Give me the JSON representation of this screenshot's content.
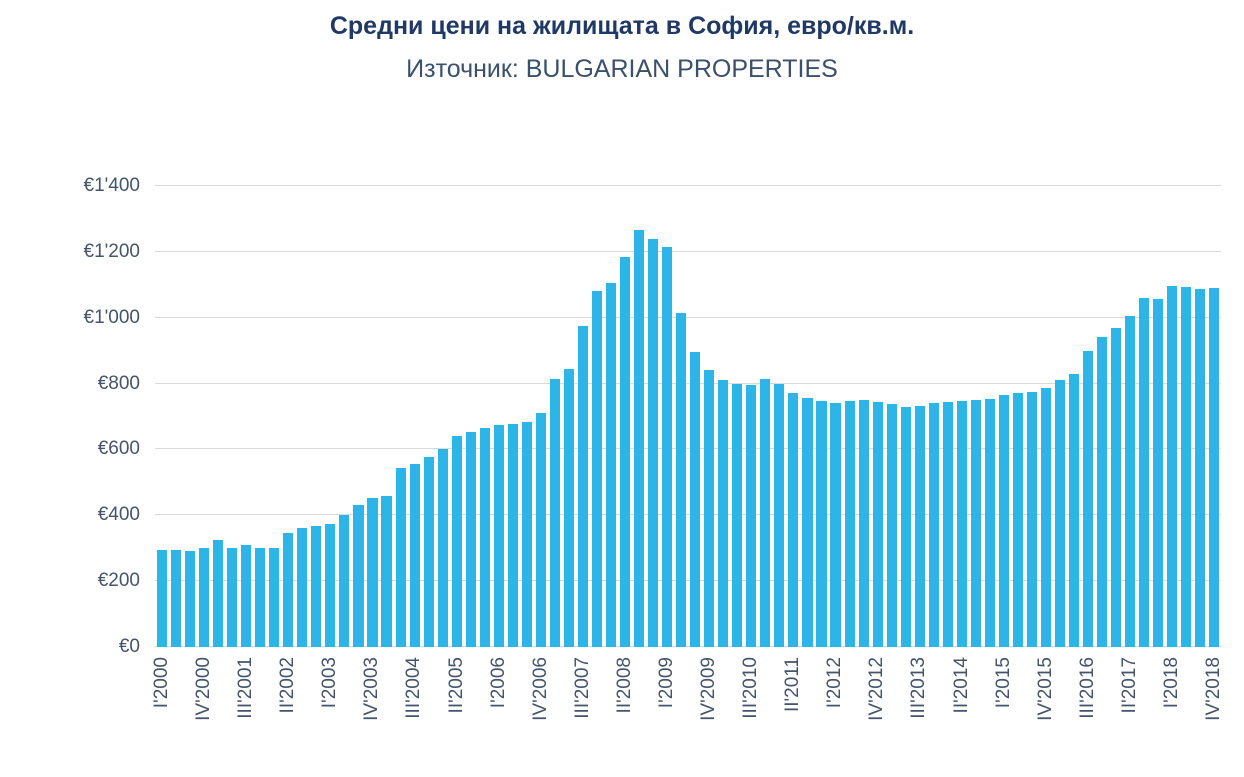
{
  "page": {
    "title": "Средни цени на жилищата в София, евро/кв.м.",
    "subtitle": "Източник: BULGARIAN PROPERTIES"
  },
  "colors": {
    "bar": "#2EB5E8",
    "title": "#1F3864",
    "subtitle": "#3A506B",
    "axis_label": "#44546A",
    "gridline": "#D9D9D9",
    "background": "#FFFFFF"
  },
  "chart_data": {
    "type": "bar",
    "title": "Средни цени на жилищата в София, евро/кв.м.",
    "subtitle": "Източник: BULGARIAN PROPERTIES",
    "unit": "EUR per sq.m.",
    "ylim": [
      0,
      1400
    ],
    "y_tick_step": 200,
    "y_tick_labels": [
      "€0",
      "€200",
      "€400",
      "€600",
      "€800",
      "€1'000",
      "€1'200",
      "€1'400"
    ],
    "x_tick_interval": 3,
    "x_tick_labels": [
      "I'2000",
      "IV'2000",
      "III'2001",
      "II'2002",
      "I'2003",
      "IV'2003",
      "III'2004",
      "II'2005",
      "I'2006",
      "IV'2006",
      "III'2007",
      "II'2008",
      "I'2009",
      "IV'2009",
      "III'2010",
      "II'2011",
      "I'2012",
      "IV'2012",
      "III'2013",
      "II'2014",
      "I'2015",
      "IV'2015",
      "III'2016",
      "II'2017",
      "I'2018",
      "IV'2018"
    ],
    "grid": "horizontal",
    "legend": "none",
    "categories": [
      "I'2000",
      "II'2000",
      "III'2000",
      "IV'2000",
      "I'2001",
      "II'2001",
      "III'2001",
      "IV'2001",
      "I'2002",
      "II'2002",
      "III'2002",
      "IV'2002",
      "I'2003",
      "II'2003",
      "III'2003",
      "IV'2003",
      "I'2004",
      "II'2004",
      "III'2004",
      "IV'2004",
      "I'2005",
      "II'2005",
      "III'2005",
      "IV'2005",
      "I'2006",
      "II'2006",
      "III'2006",
      "IV'2006",
      "I'2007",
      "II'2007",
      "III'2007",
      "IV'2007",
      "I'2008",
      "II'2008",
      "III'2008",
      "IV'2008",
      "I'2009",
      "II'2009",
      "III'2009",
      "IV'2009",
      "I'2010",
      "II'2010",
      "III'2010",
      "IV'2010",
      "I'2011",
      "II'2011",
      "III'2011",
      "IV'2011",
      "I'2012",
      "II'2012",
      "III'2012",
      "IV'2012",
      "I'2013",
      "II'2013",
      "III'2013",
      "IV'2013",
      "I'2014",
      "II'2014",
      "III'2014",
      "IV'2014",
      "I'2015",
      "II'2015",
      "III'2015",
      "IV'2015",
      "I'2016",
      "II'2016",
      "III'2016",
      "IV'2016",
      "I'2017",
      "II'2017",
      "III'2017",
      "IV'2017",
      "I'2018",
      "II'2018",
      "III'2018",
      "IV'2018"
    ],
    "values": [
      295,
      295,
      292,
      300,
      325,
      302,
      310,
      300,
      302,
      345,
      360,
      368,
      375,
      400,
      430,
      452,
      460,
      545,
      555,
      577,
      600,
      640,
      652,
      665,
      675,
      678,
      682,
      710,
      815,
      843,
      975,
      1080,
      1105,
      1185,
      1266,
      1240,
      1215,
      1015,
      895,
      840,
      812,
      800,
      797,
      815,
      800,
      770,
      755,
      748,
      742,
      748,
      750,
      745,
      738,
      728,
      733,
      740,
      745,
      748,
      750,
      753,
      765,
      770,
      775,
      788,
      810,
      830,
      900,
      940,
      968,
      1005,
      1060,
      1058,
      1095,
      1092,
      1088,
      1090
    ]
  }
}
